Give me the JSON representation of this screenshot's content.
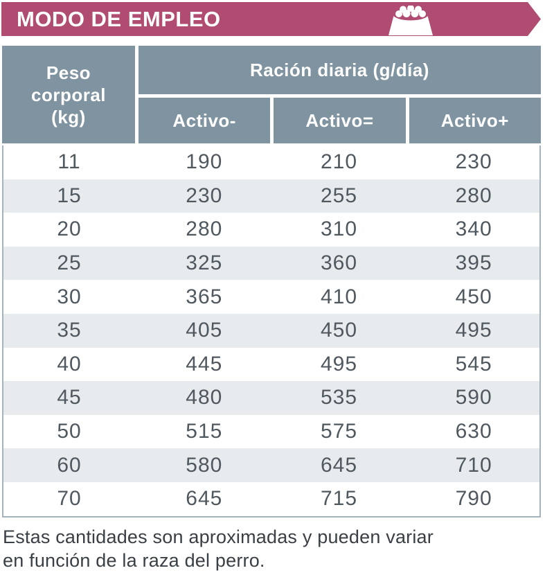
{
  "banner": {
    "title": "MODO DE EMPLEO",
    "bg_color": "#B04B72",
    "icon": "food-bowl-icon"
  },
  "table": {
    "corner_header": "Peso corporal (kg)",
    "group_header": "Ración diaria (g/día)",
    "col_headers": [
      "Activo-",
      "Activo=",
      "Activo+"
    ],
    "rows": [
      [
        "11",
        "190",
        "210",
        "230"
      ],
      [
        "15",
        "230",
        "255",
        "280"
      ],
      [
        "20",
        "280",
        "310",
        "340"
      ],
      [
        "25",
        "325",
        "360",
        "395"
      ],
      [
        "30",
        "365",
        "410",
        "450"
      ],
      [
        "35",
        "405",
        "450",
        "495"
      ],
      [
        "40",
        "445",
        "495",
        "545"
      ],
      [
        "45",
        "480",
        "535",
        "590"
      ],
      [
        "50",
        "515",
        "575",
        "630"
      ],
      [
        "60",
        "580",
        "645",
        "710"
      ],
      [
        "70",
        "645",
        "715",
        "790"
      ]
    ],
    "header_bg": "#7F93A0",
    "row_alt_bg": "#E7EBEE",
    "border_color": "#A3B4BE"
  },
  "footnote": {
    "text": "Estas cantidades son aproximadas y pueden variar en función de la raza del perro."
  }
}
